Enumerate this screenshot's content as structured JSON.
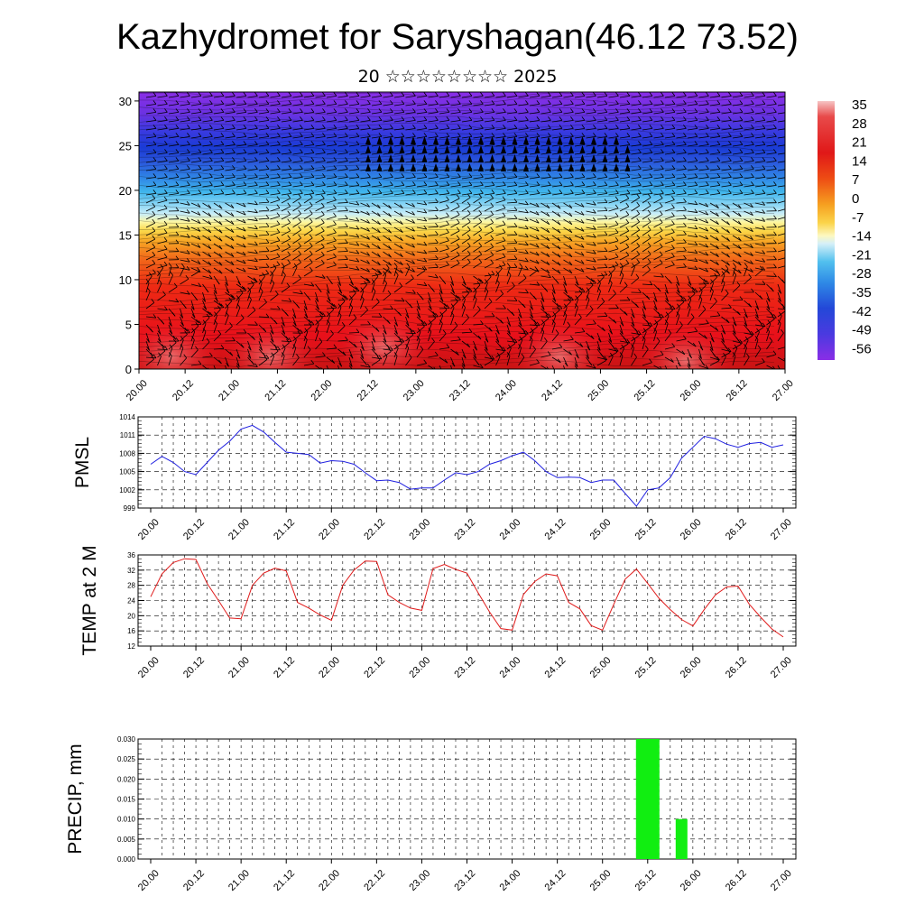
{
  "title": "Kazhydromet for Saryshagan(46.12 73.52)",
  "subtitle": "20 ☆☆☆☆☆☆☆☆ 2025",
  "x_ticks": [
    "20.00",
    "20.12",
    "21.00",
    "21.12",
    "22.00",
    "22.12",
    "23.00",
    "23.12",
    "24.00",
    "24.12",
    "25.00",
    "25.12",
    "26.00",
    "26.12",
    "27.00"
  ],
  "chart_data": [
    {
      "type": "heatmap",
      "name": "upper-air-cross-section",
      "y_ticks": [
        "0",
        "5",
        "10",
        "15",
        "20",
        "25",
        "30"
      ],
      "ylim": [
        0,
        31
      ],
      "colorbar_labels": [
        "35",
        "28",
        "21",
        "14",
        "7",
        "0",
        "-7",
        "-14",
        "-21",
        "-28",
        "-35",
        "-42",
        "-49",
        "-56"
      ],
      "colors": {
        "hot": "#e8101a",
        "warm": "#f5a020",
        "neutral": "#fdf6a0",
        "cool": "#3fb5ec",
        "cold": "#1a3bd6",
        "coldest": "#7c2ee0"
      },
      "wind_barbs": true
    },
    {
      "type": "line",
      "ylabel": "PMSL",
      "ylim": [
        999,
        1014
      ],
      "y_ticks": [
        "1014",
        "1011",
        "1008",
        "1005",
        "1002",
        "999"
      ],
      "line_color": "#1f1fe0",
      "grid": true,
      "values": [
        1006.2,
        1007.5,
        1006.5,
        1005.0,
        1004.5,
        1006.5,
        1008.5,
        1010.0,
        1012.0,
        1012.6,
        1011.5,
        1009.8,
        1008.2,
        1008.0,
        1007.8,
        1006.4,
        1006.8,
        1006.7,
        1006.2,
        1004.8,
        1003.5,
        1003.6,
        1003.2,
        1002.1,
        1002.3,
        1002.3,
        1003.6,
        1004.8,
        1004.5,
        1005.0,
        1006.2,
        1006.8,
        1007.6,
        1008.2,
        1006.8,
        1005.0,
        1004.0,
        1004.1,
        1004.0,
        1003.2,
        1003.6,
        1003.6,
        1001.4,
        999.3,
        1002.0,
        1002.3,
        1004.0,
        1007.2,
        1009.0,
        1010.8,
        1010.4,
        1009.5,
        1009.0,
        1009.6,
        1009.8,
        1009.0,
        1009.4
      ]
    },
    {
      "type": "line",
      "ylabel": "TEMP at 2 M",
      "ylim": [
        12,
        36
      ],
      "y_ticks": [
        "36",
        "32",
        "28",
        "24",
        "20",
        "16",
        "12"
      ],
      "line_color": "#e01b1b",
      "grid": true,
      "values": [
        25.0,
        31.0,
        34.0,
        35.0,
        34.8,
        28.5,
        24.0,
        19.4,
        19.2,
        28.0,
        31.2,
        32.5,
        31.8,
        23.5,
        22.0,
        20.2,
        18.8,
        28.0,
        32.0,
        34.4,
        34.3,
        25.5,
        23.5,
        22.0,
        21.4,
        32.4,
        33.5,
        32.2,
        31.2,
        26.0,
        21.0,
        16.6,
        16.2,
        25.6,
        29.0,
        31.0,
        30.5,
        23.5,
        21.8,
        17.4,
        16.2,
        23.0,
        29.6,
        32.3,
        28.5,
        24.6,
        21.6,
        19.0,
        17.3,
        21.6,
        25.5,
        27.6,
        27.8,
        23.0,
        19.6,
        16.5,
        14.4
      ]
    },
    {
      "type": "bar",
      "ylabel": "PRECIP, mm",
      "ylim": [
        0,
        0.03
      ],
      "y_ticks": [
        "0.030",
        "0.025",
        "0.020",
        "0.015",
        "0.010",
        "0.005",
        "0.000"
      ],
      "bar_color": "#11ee11",
      "grid": true,
      "bars": [
        {
          "x": 11.0,
          "value": 0.03
        },
        {
          "x": 11.75,
          "value": 0.01
        }
      ]
    }
  ]
}
